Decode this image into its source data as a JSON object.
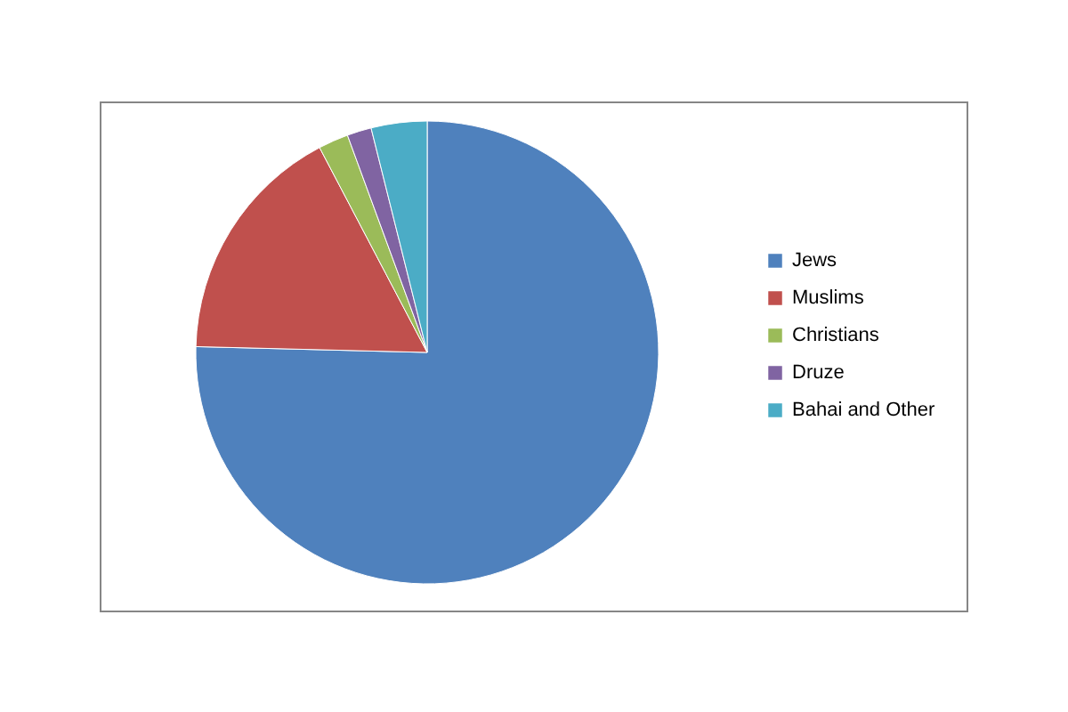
{
  "chart_data": {
    "type": "pie",
    "categories": [
      "Jews",
      "Muslims",
      "Christians",
      "Druze",
      "Bahai and Other"
    ],
    "values": [
      75.4,
      16.9,
      2.1,
      1.7,
      3.9
    ],
    "colors": [
      "#4f81bd",
      "#c0504d",
      "#9bbb59",
      "#8064a2",
      "#4bacc6"
    ],
    "legend": "right"
  }
}
